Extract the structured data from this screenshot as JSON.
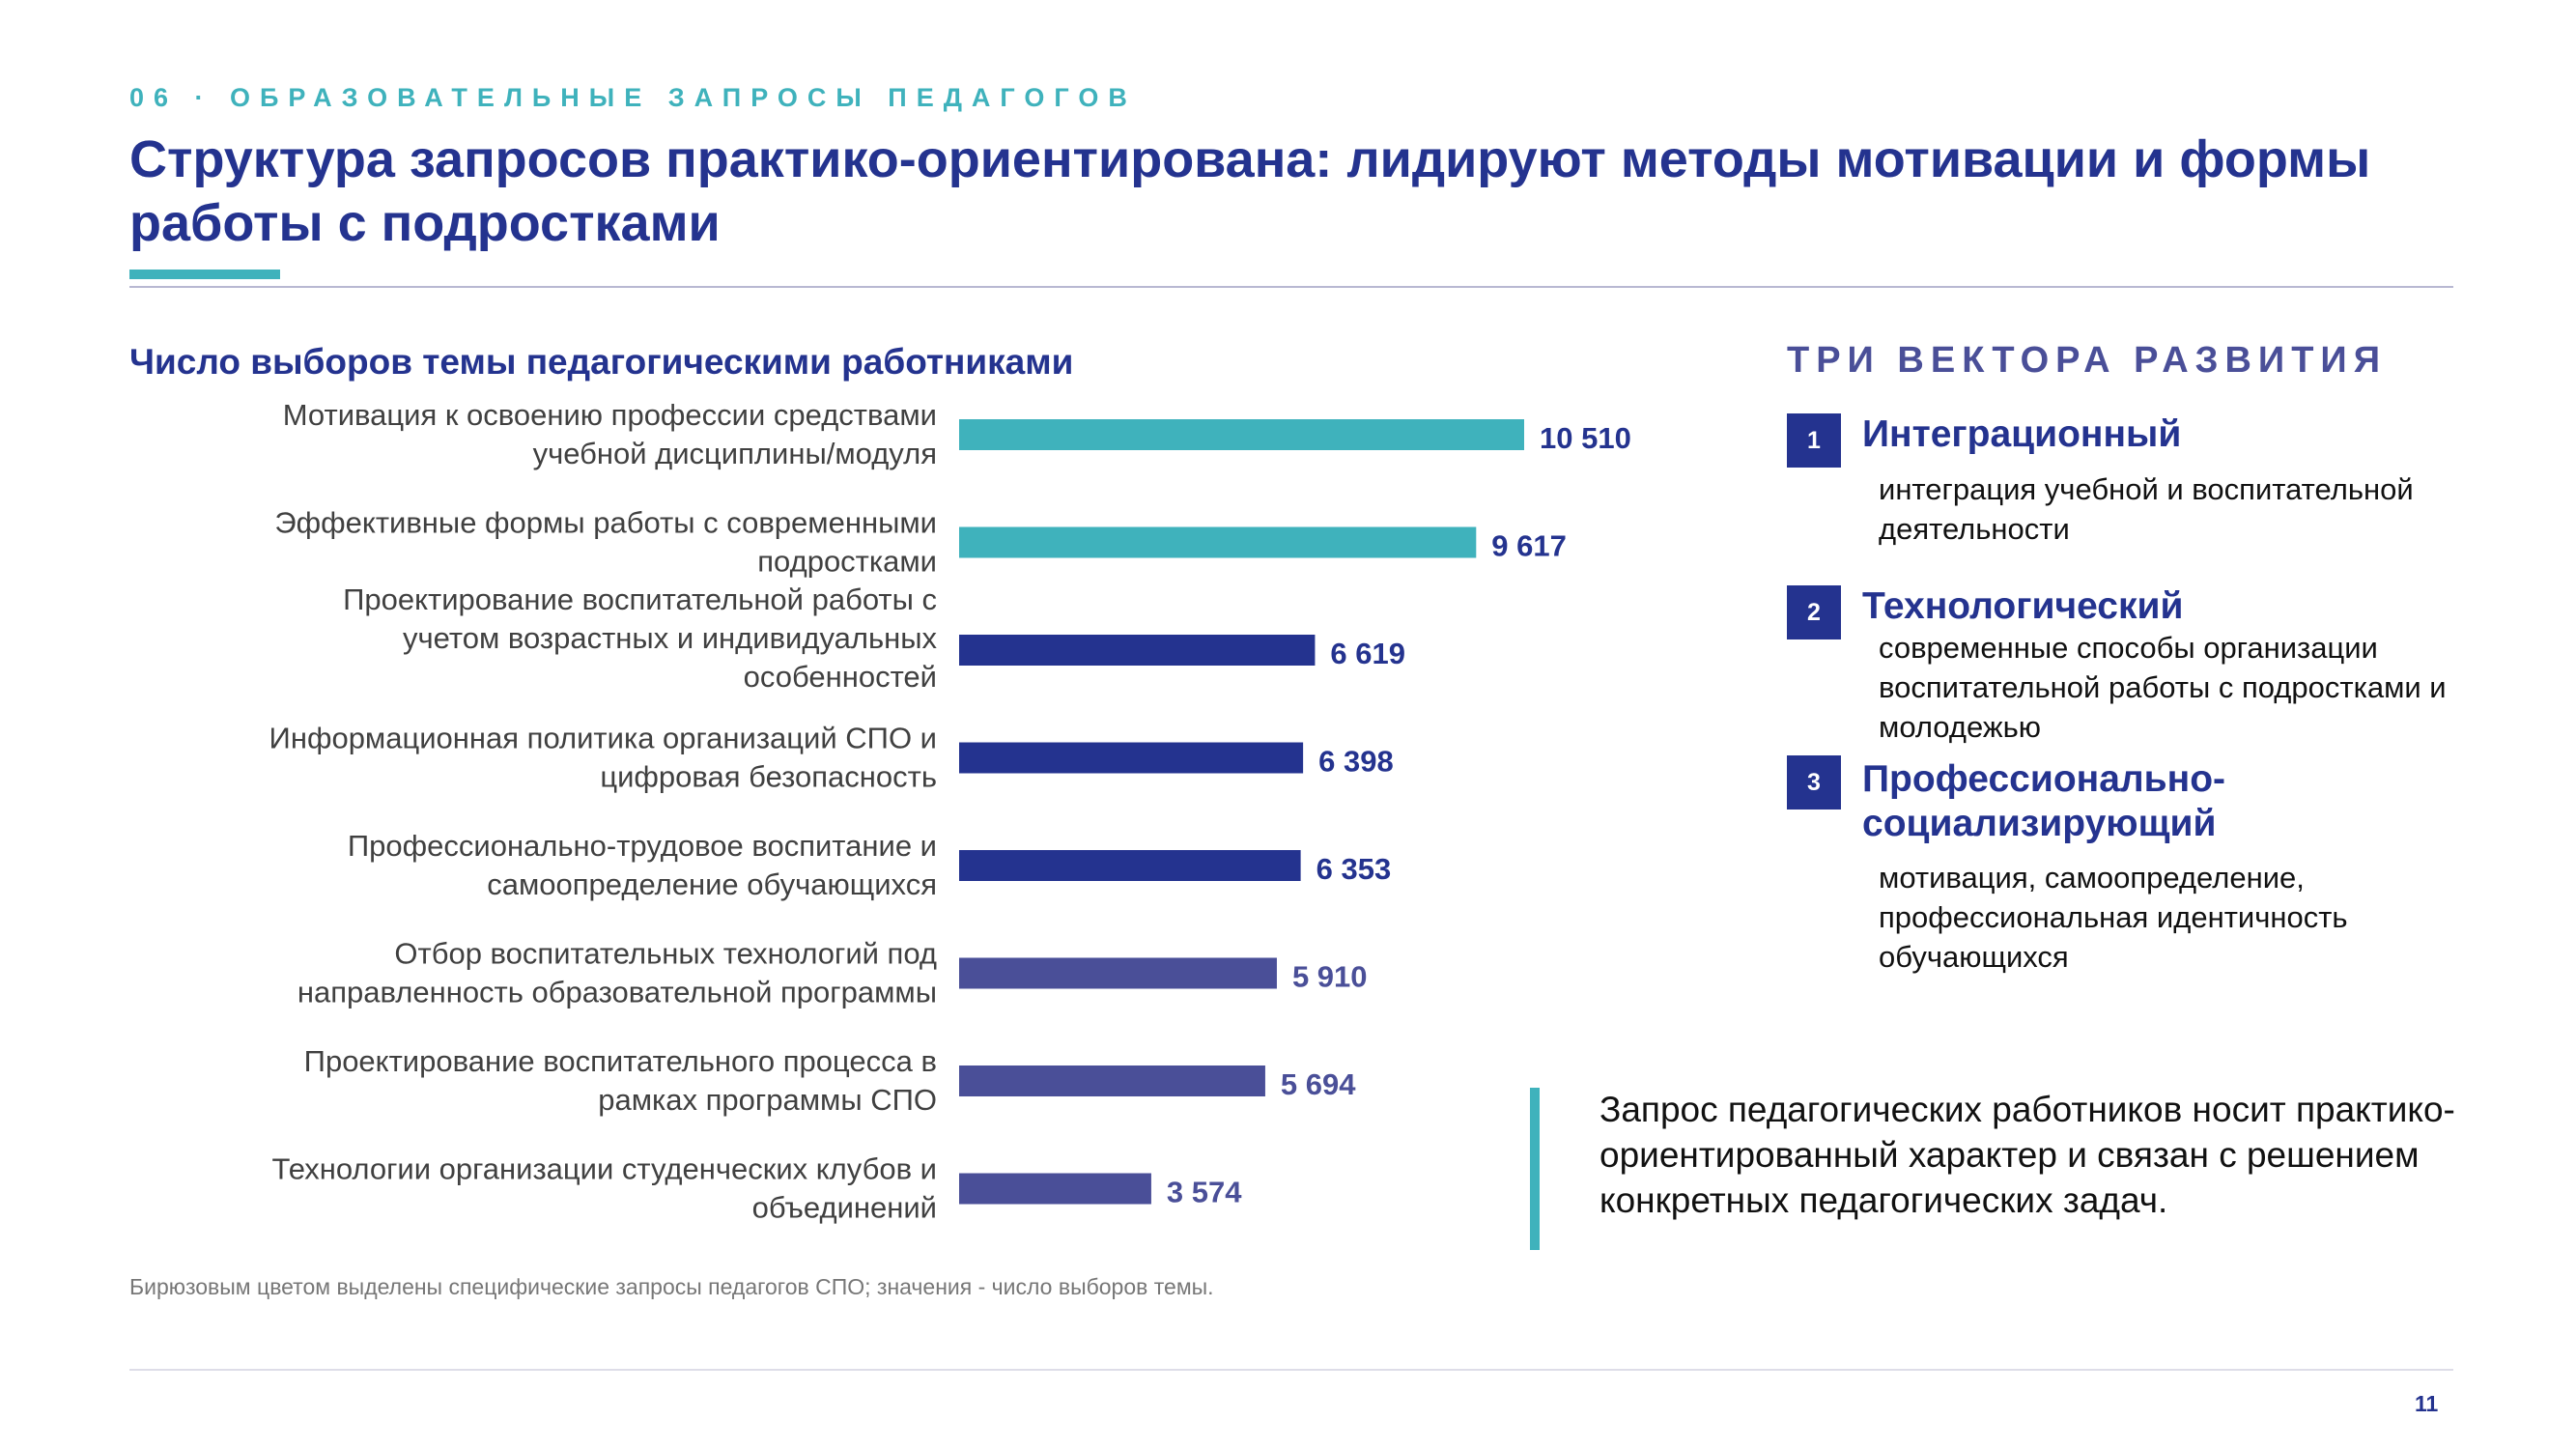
{
  "header": {
    "section_label": "06 · ОБРАЗОВАТЕЛЬНЫЕ ЗАПРОСЫ ПЕДАГОГОВ",
    "title": "Структура запросов практико-ориентирована: лидируют методы мотивации и формы работы с подростками"
  },
  "colors": {
    "teal": "#3fb2bc",
    "navy": "#24338f",
    "purple": "#4a4f98"
  },
  "chart_data": {
    "type": "bar",
    "orientation": "horizontal",
    "title": "Число выборов темы педагогическими работниками",
    "categories": [
      [
        "Мотивация к освоению профессии средствами",
        "учебной дисциплины/модуля"
      ],
      [
        "Эффективные формы работы с современными",
        "подростками"
      ],
      [
        "Проектирование воспитательной работы с",
        "учетом возрастных и индивидуальных",
        "особенностей"
      ],
      [
        "Информационная политика организаций СПО и",
        "цифровая безопасность"
      ],
      [
        "Профессионально-трудовое воспитание и",
        "самоопределение обучающихся"
      ],
      [
        "Отбор воспитательных технологий под",
        "направленность образовательной программы"
      ],
      [
        "Проектирование воспитательного процесса в",
        "рамках программы СПО"
      ],
      [
        "Технологии организации студенческих клубов и",
        "объединений"
      ]
    ],
    "values": [
      10510,
      9617,
      6619,
      6398,
      6353,
      5910,
      5694,
      3574
    ],
    "value_labels": [
      "10 510",
      "9 617",
      "6 619",
      "6 398",
      "6 353",
      "5 910",
      "5 694",
      "3 574"
    ],
    "bar_colors": [
      "#3fb2bc",
      "#3fb2bc",
      "#24338f",
      "#24338f",
      "#24338f",
      "#4a4f98",
      "#4a4f98",
      "#4a4f98"
    ],
    "xlim": [
      0,
      11000
    ],
    "grid": false,
    "legend": "none"
  },
  "footnote": "Бирюзовым цветом выделены специфические запросы педагогов СПО; значения - число выборов темы.",
  "vectors": {
    "title": "ТРИ ВЕКТОРА РАЗВИТИЯ",
    "items": [
      {
        "number": "1",
        "title": "Интеграционный",
        "description": "интеграция учебной и воспитательной деятельности"
      },
      {
        "number": "2",
        "title": "Технологический",
        "description": "современные способы организации воспитательной работы с подростками и молодежью"
      },
      {
        "number": "3",
        "title": "Профессионально-социализирующий",
        "description": "мотивация, самоопределение, профессиональная идентичность обучающихся"
      }
    ]
  },
  "callout": "Запрос педагогических работников  носит практико-ориентированный характер и связан с решением конкретных педагогических задач.",
  "page_number": "11"
}
